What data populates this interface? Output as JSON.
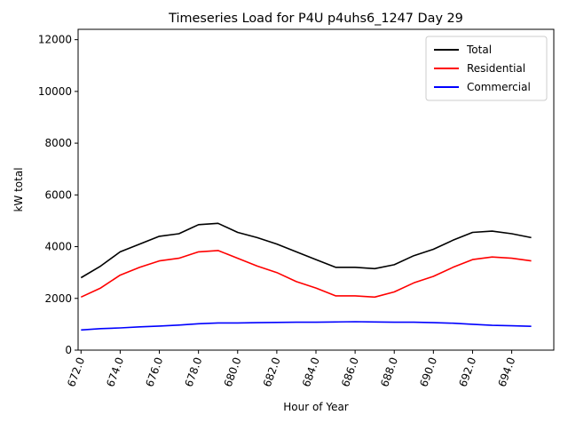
{
  "chart_data": {
    "type": "line",
    "title": "Timeseries Load for P4U p4uhs6_1247  Day 29",
    "xlabel": "Hour of Year",
    "ylabel": "kW total",
    "xlim": [
      671.85,
      696.15
    ],
    "ylim": [
      0,
      12400
    ],
    "x_ticks": [
      672,
      674,
      676,
      678,
      680,
      682,
      684,
      686,
      688,
      690,
      692,
      694
    ],
    "x_tick_labels": [
      "672.0",
      "674.0",
      "676.0",
      "678.0",
      "680.0",
      "682.0",
      "684.0",
      "686.0",
      "688.0",
      "690.0",
      "692.0",
      "694.0"
    ],
    "y_ticks": [
      0,
      2000,
      4000,
      6000,
      8000,
      10000,
      12000
    ],
    "y_tick_labels": [
      "0",
      "2000",
      "4000",
      "6000",
      "8000",
      "10000",
      "12000"
    ],
    "grid": false,
    "legend_position": "top-right",
    "x": [
      672,
      673,
      674,
      675,
      676,
      677,
      678,
      679,
      680,
      681,
      682,
      683,
      684,
      685,
      686,
      687,
      688,
      689,
      690,
      691,
      692,
      693,
      694,
      695
    ],
    "series": [
      {
        "name": "Total",
        "color": "#000000",
        "values": [
          2800,
          3250,
          3800,
          4100,
          4400,
          4500,
          4850,
          4900,
          4550,
          4350,
          4100,
          3800,
          3500,
          3200,
          3200,
          3150,
          3300,
          3650,
          3900,
          4250,
          4550,
          4600,
          4500,
          4350
        ]
      },
      {
        "name": "Residential",
        "color": "#ff0000",
        "values": [
          2050,
          2400,
          2900,
          3200,
          3450,
          3550,
          3800,
          3850,
          3550,
          3250,
          3000,
          2650,
          2400,
          2100,
          2100,
          2050,
          2250,
          2600,
          2850,
          3200,
          3500,
          3600,
          3550,
          3450
        ]
      },
      {
        "name": "Commercial",
        "color": "#0000ff",
        "values": [
          780,
          830,
          860,
          900,
          930,
          970,
          1020,
          1050,
          1050,
          1060,
          1070,
          1080,
          1080,
          1090,
          1100,
          1090,
          1080,
          1080,
          1060,
          1040,
          1000,
          960,
          940,
          920
        ]
      }
    ]
  }
}
